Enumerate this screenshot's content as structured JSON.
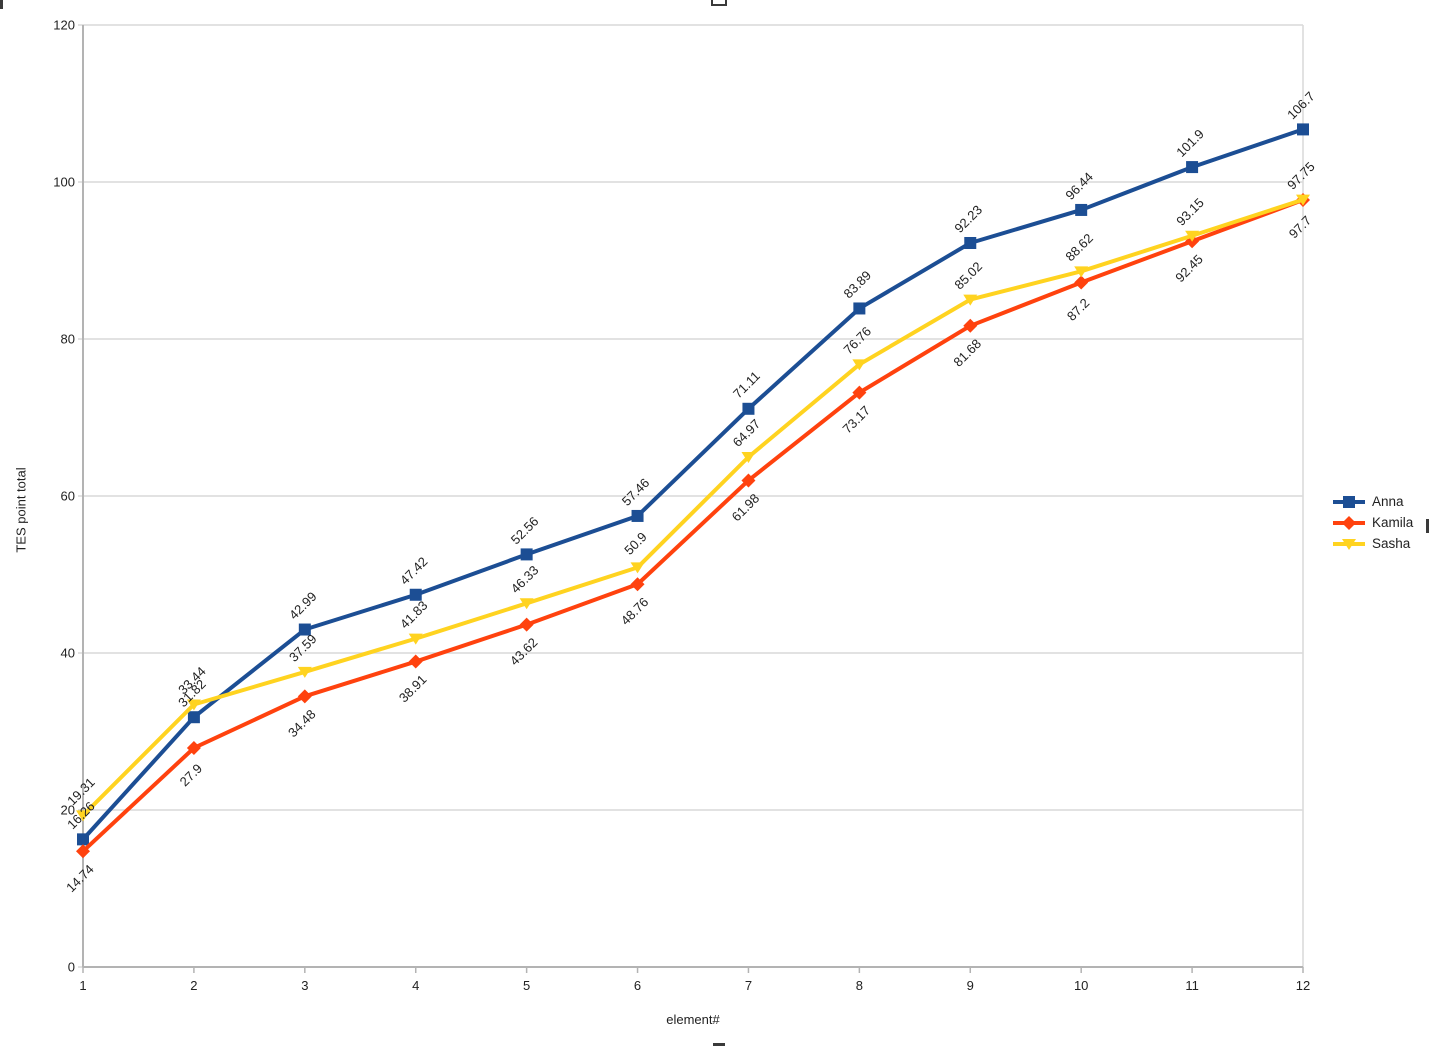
{
  "chart_data": {
    "type": "line",
    "title": "",
    "xlabel": "element#",
    "ylabel": "TES point total",
    "x": [
      1,
      2,
      3,
      4,
      5,
      6,
      7,
      8,
      9,
      10,
      11,
      12
    ],
    "xlim": [
      1,
      12
    ],
    "ylim": [
      0,
      120
    ],
    "yticks": [
      0,
      20,
      40,
      60,
      80,
      100,
      120
    ],
    "grid": "horizontal-only",
    "legend_position": "right",
    "colors": {
      "gridline": "#d9d9d9",
      "axis": "#b3b3b3",
      "text": "#222222"
    },
    "series": [
      {
        "name": "Anna",
        "color": "#1C4E94",
        "marker": "square",
        "label_placement": "above",
        "values": [
          16.26,
          31.82,
          42.99,
          47.42,
          52.56,
          57.46,
          71.11,
          83.89,
          92.23,
          96.44,
          101.9,
          106.7
        ],
        "point_labels": [
          "16.26",
          "31.82",
          "42.99",
          "47.42",
          "52.56",
          "57.46",
          "71.11",
          "83.89",
          "92.23",
          "96.44",
          "101.9",
          "106.7"
        ]
      },
      {
        "name": "Kamila",
        "color": "#FF420E",
        "marker": "diamond",
        "label_placement": "below",
        "values": [
          14.74,
          27.9,
          34.48,
          38.91,
          43.62,
          48.76,
          61.98,
          73.17,
          81.68,
          87.2,
          92.45,
          97.7
        ],
        "point_labels": [
          "14.74",
          "27.9",
          "34.48",
          "38.91",
          "43.62",
          "48.76",
          "61.98",
          "73.17",
          "81.68",
          "87.2",
          "92.45",
          "97.7"
        ]
      },
      {
        "name": "Sasha",
        "color": "#FFD320",
        "marker": "triangle-down",
        "label_placement": "above",
        "values": [
          19.31,
          33.44,
          37.59,
          41.83,
          46.33,
          50.9,
          64.97,
          76.76,
          85.02,
          88.62,
          93.15,
          97.75
        ],
        "point_labels": [
          "19.31",
          "33.44",
          "37.59",
          "41.83",
          "46.33",
          "50.9",
          "64.97",
          "76.76",
          "85.02",
          "88.62",
          "93.15",
          "97.75"
        ]
      }
    ]
  }
}
